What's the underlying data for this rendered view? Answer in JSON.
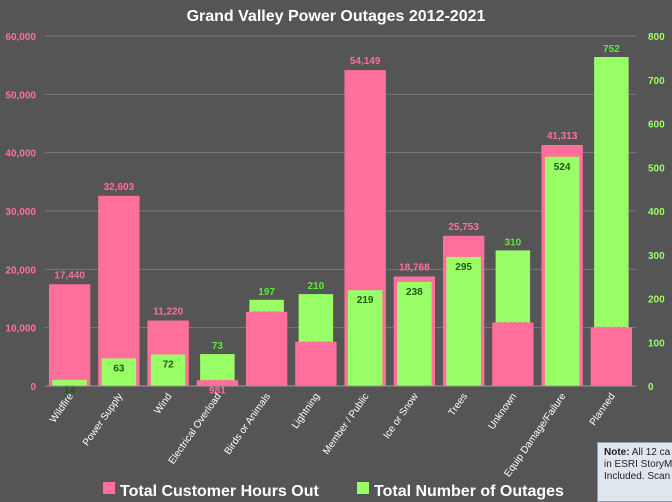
{
  "chart_data": {
    "type": "bar",
    "title": "Grand Valley Power Outages 2012-2021",
    "categories": [
      "Wildfire",
      "Power Supply",
      "Wind",
      "Electrical Overload",
      "Birds or Animals",
      "Lightning",
      "Member / Public",
      "Ice or Snow",
      "Trees",
      "Unknown",
      "Equip Damage/Failure",
      "Planned"
    ],
    "series": [
      {
        "name": "Total Customer Hours Out",
        "axis": "left",
        "color": "#ff6f9c",
        "values": [
          17440,
          32603,
          11220,
          981,
          12721,
          7573,
          54149,
          18768,
          25753,
          10878,
          41313,
          10072
        ],
        "labels": [
          "17,440",
          "32,603",
          "11,220",
          "981",
          "12,721",
          "7573",
          "54,149",
          "18,768",
          "25,753",
          "10,878",
          "41,313",
          "10,072"
        ]
      },
      {
        "name": "Total Number of Outages",
        "axis": "right",
        "color": "#99ff66",
        "values": [
          14,
          63,
          72,
          73,
          197,
          210,
          219,
          238,
          295,
          310,
          524,
          752
        ],
        "labels": [
          "14",
          "63",
          "72",
          "73",
          "197",
          "210",
          "219",
          "238",
          "295",
          "310",
          "524",
          "752"
        ]
      }
    ],
    "y_left": {
      "min": 0,
      "max": 60000,
      "ticks": [
        "0",
        "10,000",
        "20,000",
        "30,000",
        "40,000",
        "50,000",
        "60,000"
      ]
    },
    "y_right": {
      "min": 0,
      "max": 800,
      "ticks": [
        "0",
        "100",
        "200",
        "300",
        "400",
        "500",
        "600",
        "700",
        "800"
      ]
    },
    "grid": true,
    "legend": "bottom"
  },
  "note": {
    "label": "Note:",
    "line1": "All 12 ca",
    "line2": "in ESRI StoryMa",
    "line3": "Included. Scan"
  }
}
